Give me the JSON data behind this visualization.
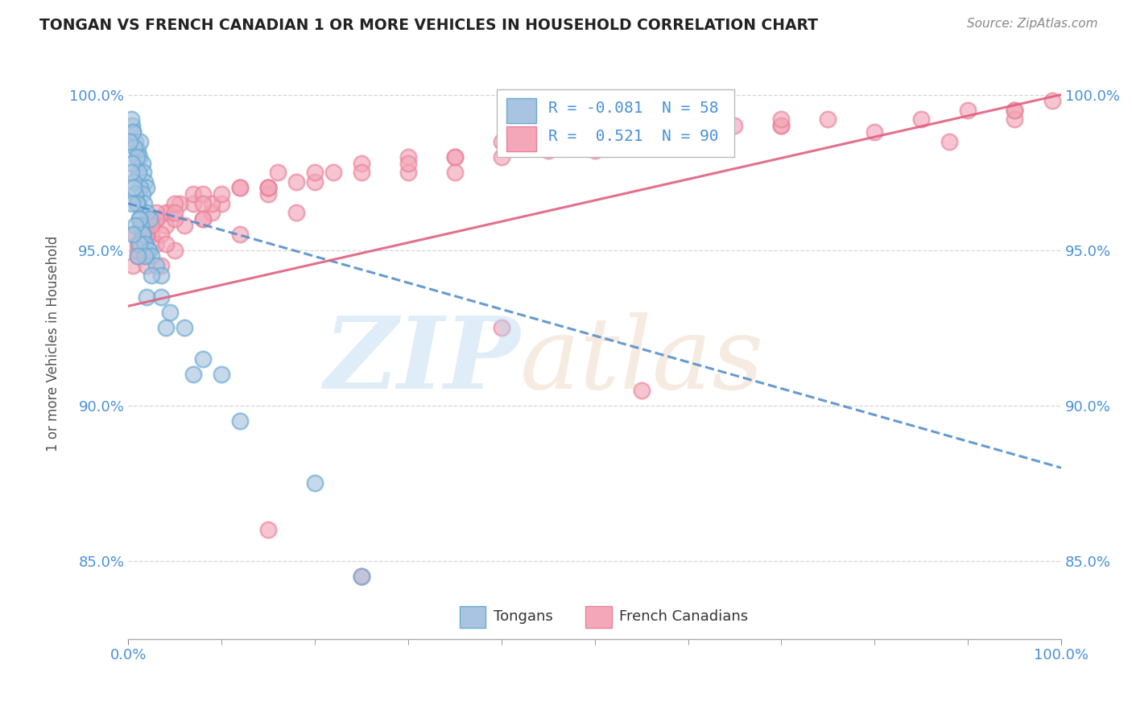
{
  "title": "TONGAN VS FRENCH CANADIAN 1 OR MORE VEHICLES IN HOUSEHOLD CORRELATION CHART",
  "source": "Source: ZipAtlas.com",
  "ylabel": "1 or more Vehicles in Household",
  "xmin": 0.0,
  "xmax": 100.0,
  "ymin": 82.5,
  "ymax": 101.5,
  "yticks": [
    85.0,
    90.0,
    95.0,
    100.0
  ],
  "ytick_labels": [
    "85.0%",
    "90.0%",
    "95.0%",
    "100.0%"
  ],
  "xticks": [
    0.0,
    100.0
  ],
  "xtick_labels": [
    "0.0%",
    "100.0%"
  ],
  "legend_r_tongan": "-0.081",
  "legend_n_tongan": "58",
  "legend_r_french": "0.521",
  "legend_n_french": "90",
  "tongan_fill": "#a8c4e0",
  "french_fill": "#f4a7b9",
  "tongan_edge": "#6aaad4",
  "french_edge": "#e8849a",
  "tongan_line_color": "#5590cc",
  "french_line_color": "#e06080",
  "background_color": "#ffffff",
  "tongan_x": [
    0.4,
    0.5,
    0.8,
    1.0,
    1.2,
    1.3,
    1.5,
    1.6,
    1.8,
    2.0,
    0.3,
    0.5,
    0.7,
    0.9,
    1.1,
    1.3,
    1.5,
    1.7,
    2.0,
    2.3,
    0.2,
    0.4,
    0.6,
    0.8,
    1.0,
    1.2,
    1.4,
    1.6,
    1.8,
    2.2,
    0.3,
    0.6,
    0.9,
    1.2,
    1.5,
    1.8,
    2.2,
    2.5,
    3.0,
    3.5,
    0.4,
    0.8,
    1.2,
    1.8,
    2.5,
    3.5,
    4.5,
    6.0,
    8.0,
    10.0,
    0.5,
    1.0,
    2.0,
    4.0,
    7.0,
    12.0,
    20.0,
    25.0
  ],
  "tongan_y": [
    99.0,
    98.8,
    98.5,
    98.2,
    98.0,
    98.5,
    97.8,
    97.5,
    97.2,
    97.0,
    99.2,
    98.8,
    98.3,
    98.0,
    97.5,
    97.0,
    96.8,
    96.5,
    96.2,
    96.0,
    98.5,
    97.8,
    97.2,
    96.8,
    96.5,
    96.0,
    95.8,
    95.5,
    95.2,
    95.0,
    97.5,
    97.0,
    96.5,
    96.0,
    95.5,
    95.2,
    95.0,
    94.8,
    94.5,
    94.2,
    96.5,
    95.8,
    95.2,
    94.8,
    94.2,
    93.5,
    93.0,
    92.5,
    91.5,
    91.0,
    95.5,
    94.8,
    93.5,
    92.5,
    91.0,
    89.5,
    87.5,
    84.5
  ],
  "french_x": [
    0.5,
    1.0,
    1.5,
    1.8,
    2.0,
    2.5,
    3.0,
    3.5,
    4.0,
    5.0,
    0.8,
    1.2,
    1.8,
    2.5,
    3.5,
    4.5,
    6.0,
    7.0,
    8.0,
    10.0,
    1.0,
    2.0,
    3.0,
    4.0,
    5.5,
    7.0,
    9.0,
    12.0,
    15.0,
    18.0,
    1.5,
    3.0,
    5.0,
    8.0,
    12.0,
    16.0,
    20.0,
    25.0,
    30.0,
    35.0,
    2.0,
    5.0,
    9.0,
    15.0,
    22.0,
    30.0,
    40.0,
    50.0,
    60.0,
    70.0,
    3.0,
    8.0,
    15.0,
    25.0,
    40.0,
    55.0,
    70.0,
    85.0,
    95.0,
    99.0,
    1.0,
    2.5,
    5.0,
    10.0,
    20.0,
    35.0,
    50.0,
    65.0,
    80.0,
    95.0,
    2.0,
    4.0,
    8.0,
    15.0,
    30.0,
    50.0,
    70.0,
    90.0,
    15.0,
    25.0,
    12.0,
    18.0,
    35.0,
    45.0,
    60.0,
    75.0,
    88.0,
    95.0,
    40.0,
    55.0
  ],
  "french_y": [
    94.5,
    94.8,
    95.0,
    95.2,
    94.8,
    95.5,
    95.2,
    94.5,
    95.8,
    95.0,
    95.5,
    95.2,
    95.8,
    96.0,
    95.5,
    96.2,
    95.8,
    96.5,
    96.0,
    96.5,
    95.0,
    95.5,
    96.0,
    96.2,
    96.5,
    96.8,
    96.2,
    97.0,
    96.8,
    97.2,
    95.8,
    96.2,
    96.5,
    96.8,
    97.0,
    97.5,
    97.2,
    97.8,
    97.5,
    98.0,
    95.5,
    96.0,
    96.5,
    97.0,
    97.5,
    98.0,
    98.5,
    98.2,
    98.8,
    99.0,
    96.0,
    96.5,
    97.0,
    97.5,
    98.0,
    98.5,
    99.0,
    99.2,
    99.5,
    99.8,
    95.2,
    95.8,
    96.2,
    96.8,
    97.5,
    98.0,
    98.5,
    99.0,
    98.8,
    99.2,
    94.5,
    95.2,
    96.0,
    97.0,
    97.8,
    98.5,
    99.2,
    99.5,
    86.0,
    84.5,
    95.5,
    96.2,
    97.5,
    98.2,
    98.8,
    99.2,
    98.5,
    99.5,
    92.5,
    90.5
  ],
  "tongan_line_start_x": 0.0,
  "tongan_line_start_y": 96.5,
  "tongan_line_end_x": 100.0,
  "tongan_line_end_y": 88.0,
  "french_line_start_x": 0.0,
  "french_line_start_y": 93.2,
  "french_line_end_x": 100.0,
  "french_line_end_y": 100.0
}
